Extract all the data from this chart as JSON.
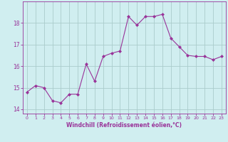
{
  "x": [
    0,
    1,
    2,
    3,
    4,
    5,
    6,
    7,
    8,
    9,
    10,
    11,
    12,
    13,
    14,
    15,
    16,
    17,
    18,
    19,
    20,
    21,
    22,
    23
  ],
  "y": [
    14.8,
    15.1,
    15.0,
    14.4,
    14.3,
    14.7,
    14.7,
    16.1,
    15.3,
    16.45,
    16.6,
    16.7,
    18.3,
    17.9,
    18.3,
    18.3,
    18.4,
    17.3,
    16.9,
    16.5,
    16.45,
    16.45,
    16.3,
    16.45
  ],
  "line_color": "#993399",
  "marker": "D",
  "marker_size": 2,
  "bg_color": "#d0eef0",
  "grid_color": "#aacccc",
  "xlabel": "Windchill (Refroidissement éolien,°C)",
  "xlabel_color": "#993399",
  "tick_color": "#993399",
  "ylim": [
    13.8,
    19.0
  ],
  "xlim": [
    -0.5,
    23.5
  ],
  "yticks": [
    14,
    15,
    16,
    17,
    18
  ],
  "xticks": [
    0,
    1,
    2,
    3,
    4,
    5,
    6,
    7,
    8,
    9,
    10,
    11,
    12,
    13,
    14,
    15,
    16,
    17,
    18,
    19,
    20,
    21,
    22,
    23
  ]
}
